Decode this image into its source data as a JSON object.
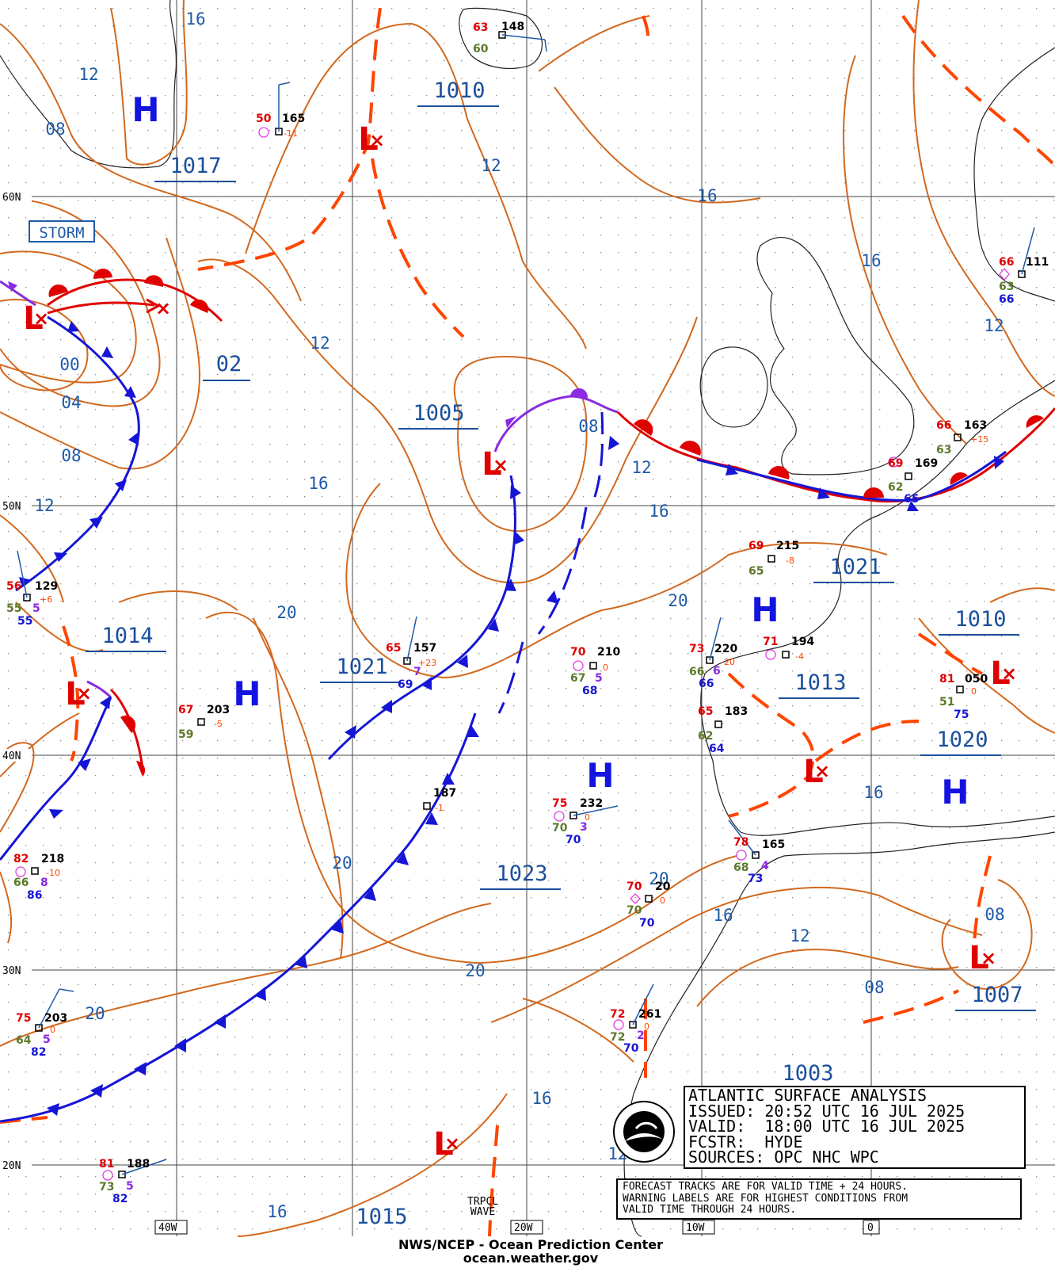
{
  "title": "ATLANTIC SURFACE ANALYSIS",
  "info": {
    "issued": "ISSUED: 20:52 UTC 16 JUL 2025",
    "valid": "VALID:  18:00 UTC 16 JUL 2025",
    "forecaster": "FCSTR:  HYDE",
    "sources": "SOURCES: OPC NHC WPC"
  },
  "notes": [
    "FORECAST TRACKS ARE FOR VALID TIME + 24 HOURS.",
    "WARNING LABELS ARE FOR HIGHEST CONDITIONS FROM",
    "VALID TIME THROUGH 24 HOURS."
  ],
  "footer": {
    "line1": "NWS/NCEP - Ocean Prediction Center",
    "line2": "ocean.weather.gov"
  },
  "warning_label": "STORM",
  "tropical_wave": {
    "line1": "TRPCL",
    "line2": "WAVE"
  },
  "latitude_labels": [
    "60N",
    "50N",
    "40N",
    "30N",
    "20N"
  ],
  "longitude_labels": [
    "40W",
    "20W",
    "10W",
    "0"
  ],
  "pressure_centers": [
    {
      "type": "H",
      "value": "1017"
    },
    {
      "type": "L",
      "value": "02"
    },
    {
      "type": "L",
      "value": "1010"
    },
    {
      "type": "L",
      "value": "1005"
    },
    {
      "type": "L",
      "value": "1014"
    },
    {
      "type": "H",
      "value": "1021"
    },
    {
      "type": "H",
      "value": "1023"
    },
    {
      "type": "H",
      "value": "1021"
    },
    {
      "type": "L",
      "value": "1013"
    },
    {
      "type": "L",
      "value": "1010"
    },
    {
      "type": "H",
      "value": "1020"
    },
    {
      "type": "L",
      "value": "1007"
    },
    {
      "type": "L",
      "value": "1003"
    },
    {
      "type": "L",
      "value": "1015"
    }
  ],
  "isobar_labels": [
    "16",
    "12",
    "08",
    "12",
    "16",
    "16",
    "12",
    "12",
    "00",
    "04",
    "08",
    "12",
    "16",
    "12",
    "16",
    "20",
    "20",
    "20",
    "20",
    "16",
    "16",
    "20",
    "12",
    "08",
    "16",
    "08",
    "12",
    "16"
  ],
  "stations": [
    {
      "t": "63",
      "p": "148",
      "td": "60"
    },
    {
      "t": "50",
      "p": "165",
      "tend": "-11"
    },
    {
      "t": "66",
      "p": "111",
      "td": "63",
      "sst": "66"
    },
    {
      "t": "66",
      "p": "163",
      "td": "63",
      "tend": "+15"
    },
    {
      "t": "69",
      "p": "169",
      "td": "62",
      "sst": "65"
    },
    {
      "t": "69",
      "p": "215",
      "td": "65",
      "tend": "-8"
    },
    {
      "t": "56",
      "p": "129",
      "td": "55",
      "tend": "+6",
      "wave": "5",
      "sst": "55"
    },
    {
      "t": "65",
      "p": "157",
      "tend": "+23",
      "wave": "7",
      "sst": "69"
    },
    {
      "t": "70",
      "p": "210",
      "td": "67",
      "tend": "0",
      "wave": "5",
      "sst": "68"
    },
    {
      "t": "73",
      "p": "220",
      "td": "66",
      "tend": "-20",
      "wave": "6",
      "sst": "66"
    },
    {
      "t": "71",
      "p": "194",
      "tend": "-4"
    },
    {
      "t": "81",
      "p": "050",
      "td": "51",
      "tend": "0",
      "sst": "75"
    },
    {
      "t": "67",
      "p": "203",
      "td": "59",
      "tend": "-5"
    },
    {
      "t": "65",
      "p": "183",
      "td": "62",
      "sst": "64"
    },
    {
      "t": "187",
      "p": "",
      "tend": "-1"
    },
    {
      "t": "75",
      "p": "232",
      "td": "70",
      "tend": "0",
      "wave": "3",
      "sst": "70"
    },
    {
      "t": "82",
      "p": "218",
      "td": "66",
      "tend": "-10",
      "wave": "8",
      "sst": "86"
    },
    {
      "t": "78",
      "p": "165",
      "td": "68",
      "wave": "4",
      "sst": "73"
    },
    {
      "t": "70",
      "p": "20",
      "td": "70",
      "tend": "0",
      "sst": "70"
    },
    {
      "t": "75",
      "p": "203",
      "td": "64",
      "tend": "0",
      "wave": "5",
      "sst": "82"
    },
    {
      "t": "72",
      "p": "261",
      "td": "72",
      "tend": "0",
      "wave": "2",
      "sst": "70"
    },
    {
      "t": "81",
      "p": "188",
      "td": "73",
      "wave": "5",
      "sst": "82"
    }
  ]
}
